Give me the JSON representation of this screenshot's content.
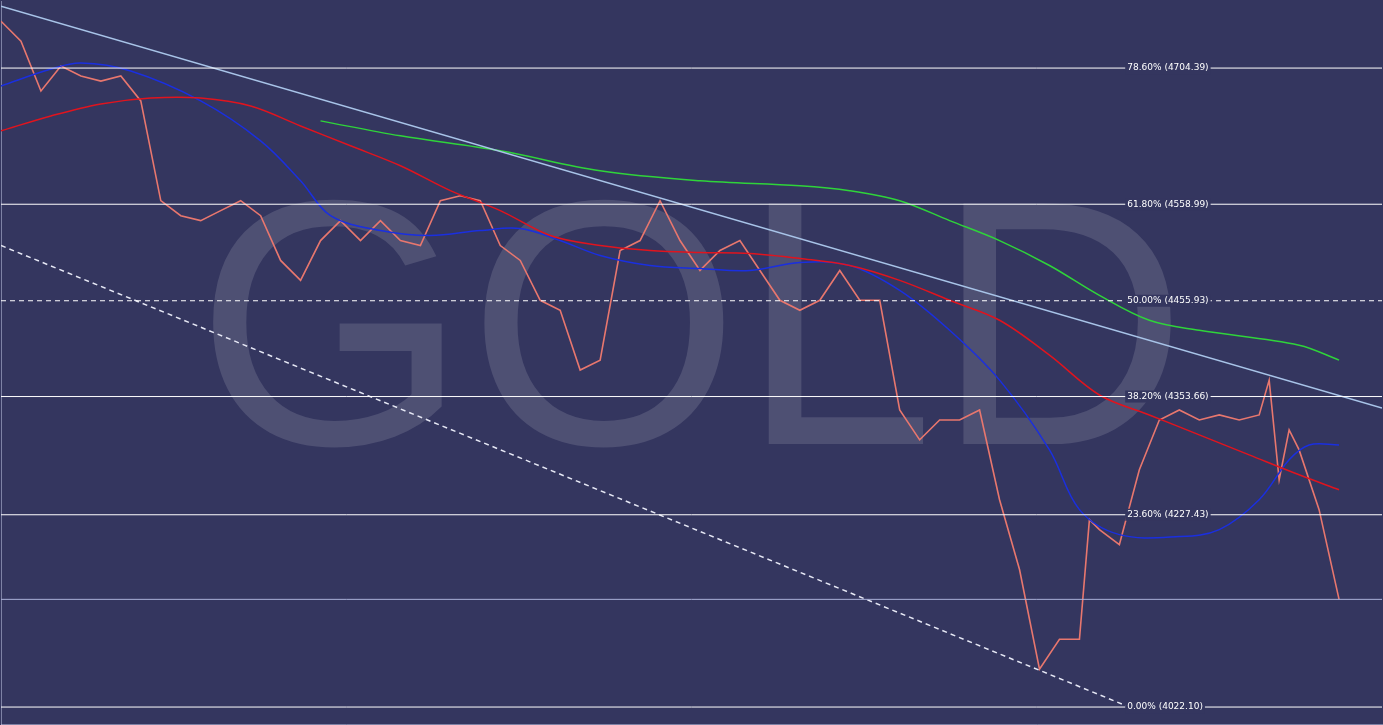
{
  "chart_data": {
    "type": "line",
    "watermark": "GOLD",
    "xlim": [
      0,
      138.3
    ],
    "ylim": [
      4004,
      4776
    ],
    "xticks": [],
    "yticks": [],
    "grid": false,
    "tick_labels": false,
    "series": [
      {
        "color": "#a8c4e8",
        "line_style": "solid",
        "x": [
          0,
          138.3
        ],
        "values": [
          4770.4,
          4341.4
        ]
      },
      {
        "color": "#e6e8f5",
        "line_style": "dashed",
        "x": [
          0,
          113
        ],
        "values": [
          4514.9,
          4022.1
        ]
      },
      {
        "color": "#2fd43a",
        "line_style": "solid",
        "x": [
          32,
          40,
          50,
          60,
          70,
          80,
          85,
          90,
          95,
          100,
          105,
          110,
          115,
          120,
          130,
          134
        ],
        "values": [
          4648.0,
          4632.0,
          4616.0,
          4594.7,
          4584.1,
          4578.8,
          4573.5,
          4562.8,
          4541.5,
          4520.2,
          4493.6,
          4461.7,
          4435.1,
          4424.4,
          4408.5,
          4392.5
        ]
      },
      {
        "color": "#e0141e",
        "line_style": "solid",
        "x": [
          0,
          5,
          10,
          15,
          20,
          25,
          30,
          35,
          40,
          45,
          50,
          55,
          60,
          65,
          70,
          75,
          80,
          85,
          90,
          95,
          100,
          105,
          110,
          115,
          120,
          125,
          130,
          134
        ],
        "values": [
          4637.3,
          4653.3,
          4666.1,
          4672.4,
          4672.4,
          4663.9,
          4642.6,
          4621.4,
          4600.1,
          4573.5,
          4552.2,
          4525.6,
          4514.9,
          4509.6,
          4507.5,
          4506.4,
          4501.1,
          4493.6,
          4477.7,
          4456.4,
          4435.1,
          4397.8,
          4355.3,
          4334.0,
          4312.7,
          4291.4,
          4270.1,
          4254.1
        ]
      },
      {
        "color": "#1a2fe0",
        "line_style": "solid",
        "x": [
          0,
          5,
          8,
          13,
          20,
          26,
          30,
          33,
          38,
          43,
          48,
          52,
          56,
          60,
          65,
          70,
          75,
          80,
          85,
          90,
          95,
          100,
          105,
          108,
          112,
          118,
          122,
          126,
          129,
          131,
          134
        ],
        "values": [
          4685.2,
          4703.3,
          4709.7,
          4701.2,
          4669.3,
          4626.7,
          4584.1,
          4546.8,
          4530.9,
          4525.6,
          4530.9,
          4533.0,
          4520.2,
          4504.3,
          4493.6,
          4490.4,
          4488.3,
          4496.8,
          4493.6,
          4467.0,
          4424.4,
          4371.2,
          4296.7,
          4232.9,
          4206.2,
          4204.1,
          4211.6,
          4243.5,
          4286.1,
          4302.0,
          4302.0
        ]
      },
      {
        "color": "#e8776e",
        "line_style": "solid",
        "x": [
          0,
          2,
          4,
          6,
          8,
          10,
          12,
          14,
          16,
          18,
          20,
          22,
          24,
          26,
          28,
          30,
          32,
          34,
          36,
          38,
          40,
          42,
          44,
          46,
          48,
          50,
          52,
          54,
          56,
          58,
          60,
          62,
          64,
          66,
          68,
          70,
          72,
          74,
          76,
          78,
          80,
          82,
          84,
          86,
          88,
          90,
          92,
          94,
          96,
          98,
          100,
          102,
          104,
          106,
          108,
          109,
          110,
          112,
          114,
          116,
          118,
          120,
          122,
          124,
          126,
          127,
          128,
          129,
          130,
          132,
          134
        ],
        "values": [
          4754.4,
          4733.1,
          4679.9,
          4706.5,
          4695.9,
          4690.5,
          4695.9,
          4669.3,
          4562.8,
          4546.8,
          4541.5,
          4552.2,
          4562.8,
          4546.8,
          4499.0,
          4477.7,
          4520.2,
          4541.5,
          4520.2,
          4541.5,
          4520.2,
          4514.9,
          4562.8,
          4568.1,
          4562.8,
          4514.9,
          4499.0,
          4456.4,
          4445.7,
          4381.9,
          4392.5,
          4509.6,
          4520.2,
          4562.8,
          4520.2,
          4488.3,
          4509.6,
          4520.2,
          4488.3,
          4456.4,
          4445.7,
          4456.4,
          4488.3,
          4456.4,
          4456.4,
          4339.3,
          4307.4,
          4328.6,
          4328.6,
          4339.3,
          4243.5,
          4169.0,
          4062.5,
          4094.5,
          4094.5,
          4222.2,
          4211.6,
          4195.6,
          4275.4,
          4328.6,
          4339.3,
          4328.6,
          4334.0,
          4328.6,
          4334.0,
          4371.2,
          4264.8,
          4318.0,
          4296.7,
          4232.9,
          4137.1
        ]
      }
    ],
    "fib_levels": [
      {
        "label": "78.60% (4704.39)",
        "value": 4704.39,
        "color": "#ffffff",
        "line_style": "solid"
      },
      {
        "label": "61.80% (4558.99)",
        "value": 4558.99,
        "color": "#ffffff",
        "line_style": "solid"
      },
      {
        "label": "50.00% (4455.93)",
        "value": 4455.93,
        "color": "#ffffff",
        "line_style": "dashed"
      },
      {
        "label": "38.20% (4353.66)",
        "value": 4353.66,
        "color": "#ffffff",
        "line_style": "solid"
      },
      {
        "label": "23.60% (4227.43)",
        "value": 4227.43,
        "color": "#ffffff",
        "line_style": "solid"
      },
      {
        "label": "0.00% (4022.10)",
        "value": 4022.1,
        "color": "#ffffff",
        "line_style": "solid"
      }
    ],
    "price_line": {
      "value": 4137.1,
      "color": "#a9b0d8",
      "line_style": "solid"
    }
  }
}
